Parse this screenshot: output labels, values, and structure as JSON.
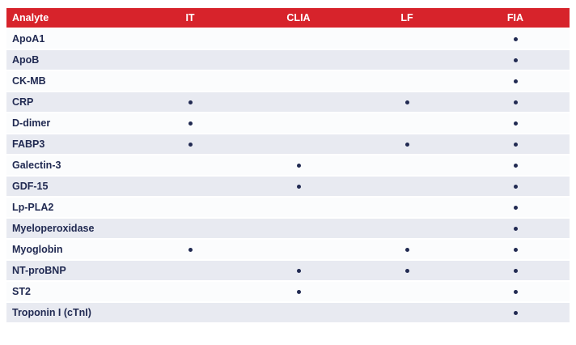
{
  "table": {
    "columns": [
      "Analyte",
      "IT",
      "CLIA",
      "LF",
      "FIA"
    ],
    "rows": [
      {
        "analyte": "ApoA1",
        "marks": [
          false,
          false,
          false,
          true
        ]
      },
      {
        "analyte": "ApoB",
        "marks": [
          false,
          false,
          false,
          true
        ]
      },
      {
        "analyte": "CK-MB",
        "marks": [
          false,
          false,
          false,
          true
        ]
      },
      {
        "analyte": "CRP",
        "marks": [
          true,
          false,
          true,
          true
        ]
      },
      {
        "analyte": "D-dimer",
        "marks": [
          true,
          false,
          false,
          true
        ]
      },
      {
        "analyte": "FABP3",
        "marks": [
          true,
          false,
          true,
          true
        ]
      },
      {
        "analyte": "Galectin-3",
        "marks": [
          false,
          true,
          false,
          true
        ]
      },
      {
        "analyte": "GDF-15",
        "marks": [
          false,
          true,
          false,
          true
        ]
      },
      {
        "analyte": "Lp-PLA2",
        "marks": [
          false,
          false,
          false,
          true
        ]
      },
      {
        "analyte": "Myeloperoxidase",
        "marks": [
          false,
          false,
          false,
          true
        ]
      },
      {
        "analyte": "Myoglobin",
        "marks": [
          true,
          false,
          true,
          true
        ]
      },
      {
        "analyte": "NT-proBNP",
        "marks": [
          false,
          true,
          true,
          true
        ]
      },
      {
        "analyte": "ST2",
        "marks": [
          false,
          true,
          false,
          true
        ]
      },
      {
        "analyte": "Troponin I (cTnI)",
        "marks": [
          false,
          false,
          false,
          true
        ]
      }
    ],
    "dot_glyph": "dot-marker",
    "colors": {
      "header_bg": "#d7232b",
      "header_text": "#ffffff",
      "row_bg": "#fbfcfd",
      "row_alt_bg": "#e8eaf1",
      "text": "#212a52",
      "dot": "#212a52",
      "page_bg": "#ffffff"
    }
  }
}
